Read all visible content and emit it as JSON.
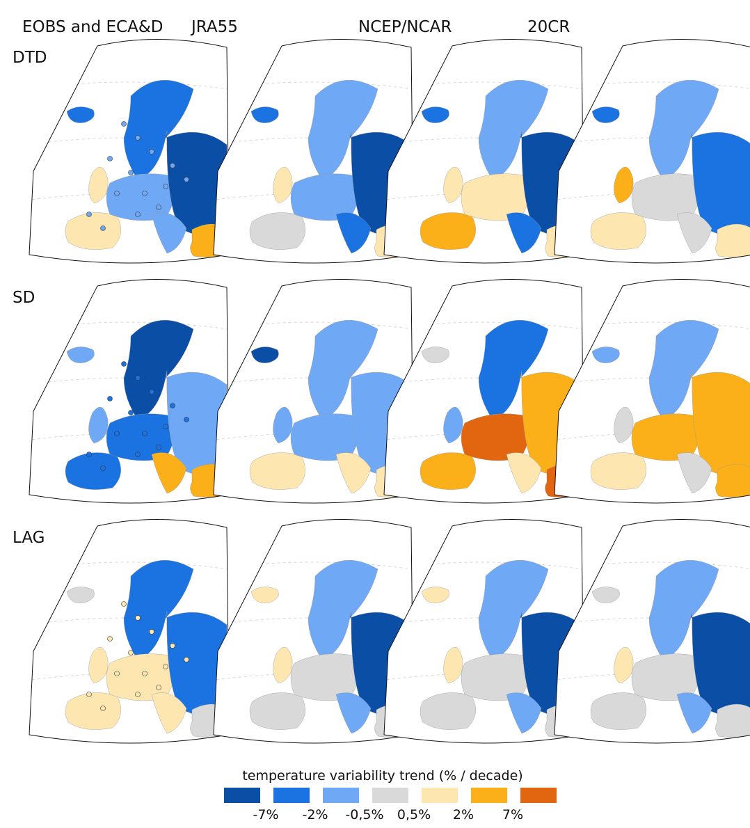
{
  "columns": [
    "EOBS and ECA&D",
    "JRA55",
    "NCEP/NCAR",
    "20CR"
  ],
  "rows": [
    "DTD",
    "SD",
    "LAG"
  ],
  "legend": {
    "title": "temperature variability trend (% / decade)",
    "colors": [
      "#0b4ea6",
      "#1a73e0",
      "#6fa8f5",
      "#d9d9d9",
      "#fde6b0",
      "#fbaf18",
      "#e26510"
    ],
    "tick_labels": [
      "-7%",
      "-2%",
      "-0,5%",
      "0,5%",
      "2%",
      "7%"
    ]
  }
}
